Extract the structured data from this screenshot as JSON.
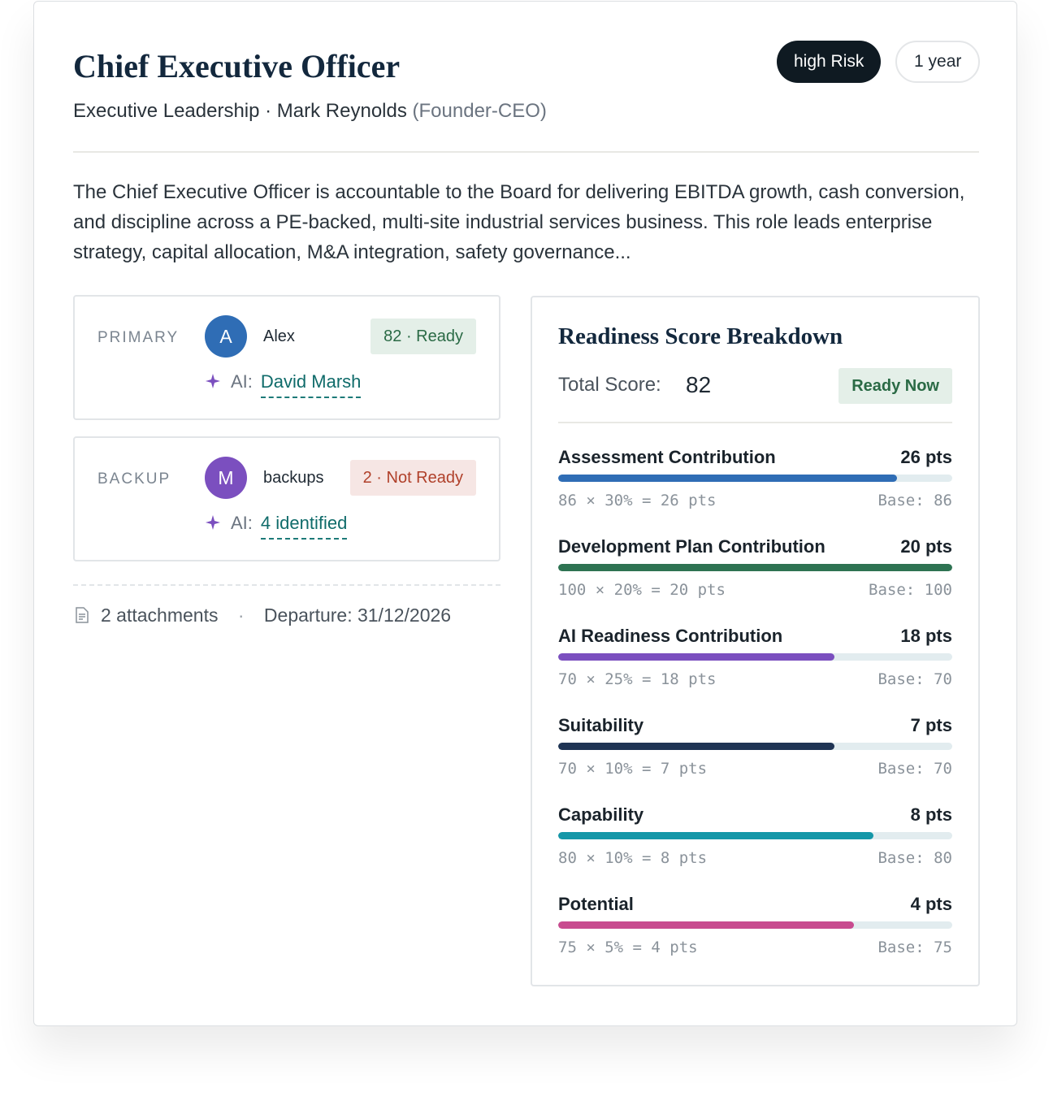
{
  "header": {
    "title": "Chief Executive Officer",
    "subtitle": "Executive Leadership · Mark Reynolds",
    "subtitle_note": "(Founder-CEO)",
    "badges": [
      "high Risk",
      "1 year"
    ]
  },
  "description": "The Chief Executive Officer is accountable to the Board for delivering EBITDA growth, cash conversion, and discipline across a PE-backed, multi-site industrial services business. This role leads enterprise strategy, capital allocation, M&A integration, safety governance...",
  "successors": [
    {
      "role": "PRIMARY",
      "avatar": "A",
      "name": "Alex",
      "status": "82 · Ready",
      "ai_label": "AI:",
      "ai_value": "David Marsh"
    },
    {
      "role": "BACKUP",
      "avatar": "M",
      "name": "backups",
      "status": "2 · Not Ready",
      "ai_label": "AI:",
      "ai_value": "4 identified"
    }
  ],
  "footer": {
    "attachments": "2 attachments",
    "separator": "·",
    "departure": "Departure: 31/12/2026"
  },
  "breakdown": {
    "title": "Readiness Score Breakdown",
    "total_label": "Total Score:",
    "total": 82,
    "status": "Ready Now",
    "items": [
      {
        "label": "Assessment Contribution",
        "points": "26 pts",
        "formula": "86 × 30% = 26 pts",
        "base_label": "Base:",
        "base": 86,
        "color": "#2f6db5"
      },
      {
        "label": "Development Plan Contribution",
        "points": "20 pts",
        "formula": "100 × 20% = 20 pts",
        "base_label": "Base:",
        "base": 100,
        "color": "#2e7352"
      },
      {
        "label": "AI Readiness Contribution",
        "points": "18 pts",
        "formula": "70 × 25% = 18 pts",
        "base_label": "Base:",
        "base": 70,
        "color": "#7b4fbf"
      },
      {
        "label": "Suitability",
        "points": "7 pts",
        "formula": "70 × 10% = 7 pts",
        "base_label": "Base:",
        "base": 70,
        "color": "#1f3454"
      },
      {
        "label": "Capability",
        "points": "8 pts",
        "formula": "80 × 10% = 8 pts",
        "base_label": "Base:",
        "base": 80,
        "color": "#1597a8"
      },
      {
        "label": "Potential",
        "points": "4 pts",
        "formula": "75 × 5% = 4 pts",
        "base_label": "Base:",
        "base": 75,
        "color": "#c84b8f"
      }
    ]
  }
}
